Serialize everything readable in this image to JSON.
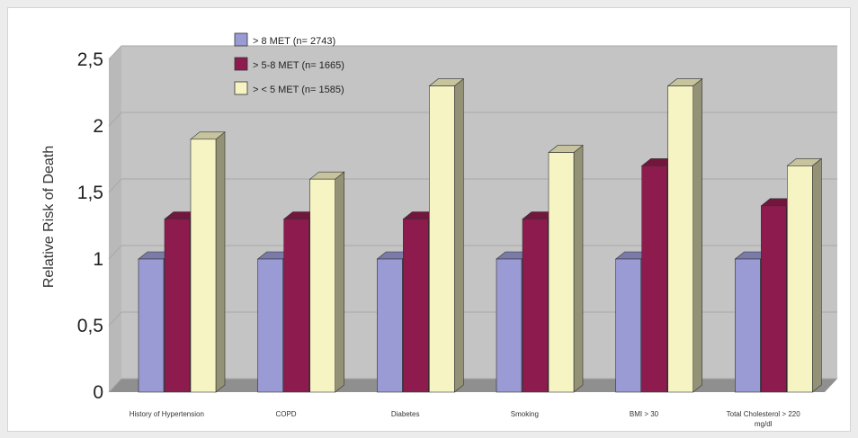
{
  "chart_data": {
    "type": "bar",
    "title": "",
    "xlabel": "",
    "ylabel": "Relative Risk of Death",
    "categories": [
      [
        "History of Hypertension"
      ],
      [
        "COPD"
      ],
      [
        "Diabetes"
      ],
      [
        "Smoking"
      ],
      [
        "BMI > 30"
      ],
      [
        "Total Cholesterol > 220",
        "mg/dl"
      ]
    ],
    "series": [
      {
        "name": "> 8 MET (n= 2743)",
        "values": [
          1,
          1,
          1,
          1,
          1,
          1
        ],
        "color": "#9a9ad4"
      },
      {
        "name": "> 5-8 MET (n= 1665)",
        "values": [
          1.3,
          1.3,
          1.3,
          1.3,
          1.7,
          1.4
        ],
        "color": "#8e1b4d"
      },
      {
        "name": "> < 5 MET (n= 1585)",
        "values": [
          1.9,
          1.6,
          2.3,
          1.8,
          2.3,
          1.7
        ],
        "color": "#f7f4c4"
      }
    ],
    "ylim": [
      0,
      2.5
    ],
    "yticks": [
      0,
      0.5,
      1,
      1.5,
      2,
      2.5
    ],
    "ytick_labels": [
      "0",
      "0,5",
      "1",
      "1,5",
      "2",
      "2,5"
    ],
    "grid": true,
    "legend_position": "top-left"
  }
}
